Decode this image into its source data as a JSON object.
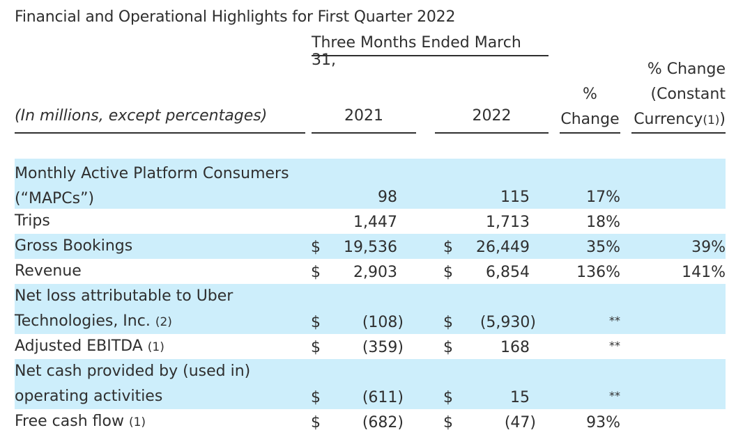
{
  "title": "Financial and Operational Highlights for First Quarter 2022",
  "period_header": "Three Months Ended March 31,",
  "columns": {
    "label": "(In millions, except percentages)",
    "y2021": "2021",
    "y2022": "2022",
    "pct_change_line1": "%",
    "pct_change_line2": "Change",
    "cc_line1": "% Change",
    "cc_line2": "(Constant",
    "cc_line3": "Currency",
    "cc_note": "(1)",
    "cc_close": ")"
  },
  "rows": [
    {
      "label_line1": "Monthly Active Platform Consumers",
      "label_line2": "(“MAPCs”)",
      "dollar_2021": "",
      "v2021": "98",
      "dollar_2022": "",
      "v2022": "115",
      "pct": "17%",
      "cc": ""
    },
    {
      "label_line1": "Trips",
      "dollar_2021": "",
      "v2021": "1,447",
      "dollar_2022": "",
      "v2022": "1,713",
      "pct": "18%",
      "cc": ""
    },
    {
      "label_line1": "Gross Bookings",
      "dollar_2021": "$",
      "v2021": "19,536",
      "dollar_2022": "$",
      "v2022": "26,449",
      "pct": "35%",
      "cc": "39%"
    },
    {
      "label_line1": "Revenue",
      "dollar_2021": "$",
      "v2021": "2,903",
      "dollar_2022": "$",
      "v2022": "6,854",
      "pct": "136%",
      "cc": "141%"
    },
    {
      "label_line1": "Net loss attributable to Uber",
      "label_line2": "Technologies, Inc. ",
      "note": "(2)",
      "dollar_2021": "$",
      "v2021": "(108)",
      "dollar_2022": "$",
      "v2022": "(5,930)",
      "pct": "**",
      "cc": ""
    },
    {
      "label_line1": "Adjusted EBITDA ",
      "note": "(1)",
      "dollar_2021": "$",
      "v2021": "(359)",
      "dollar_2022": "$",
      "v2022": "168",
      "pct": "**",
      "cc": ""
    },
    {
      "label_line1": "Net cash provided by (used in)",
      "label_line2": "operating activities",
      "dollar_2021": "$",
      "v2021": "(611)",
      "dollar_2022": "$",
      "v2022": "15",
      "pct": "**",
      "cc": ""
    },
    {
      "label_line1": "Free cash flow ",
      "note": "(1)",
      "dollar_2021": "$",
      "v2021": "(682)",
      "dollar_2022": "$",
      "v2022": "(47)",
      "pct": "93%",
      "cc": ""
    }
  ],
  "colors": {
    "row_shade": "#cdeefb",
    "text": "#2f2f2f"
  }
}
